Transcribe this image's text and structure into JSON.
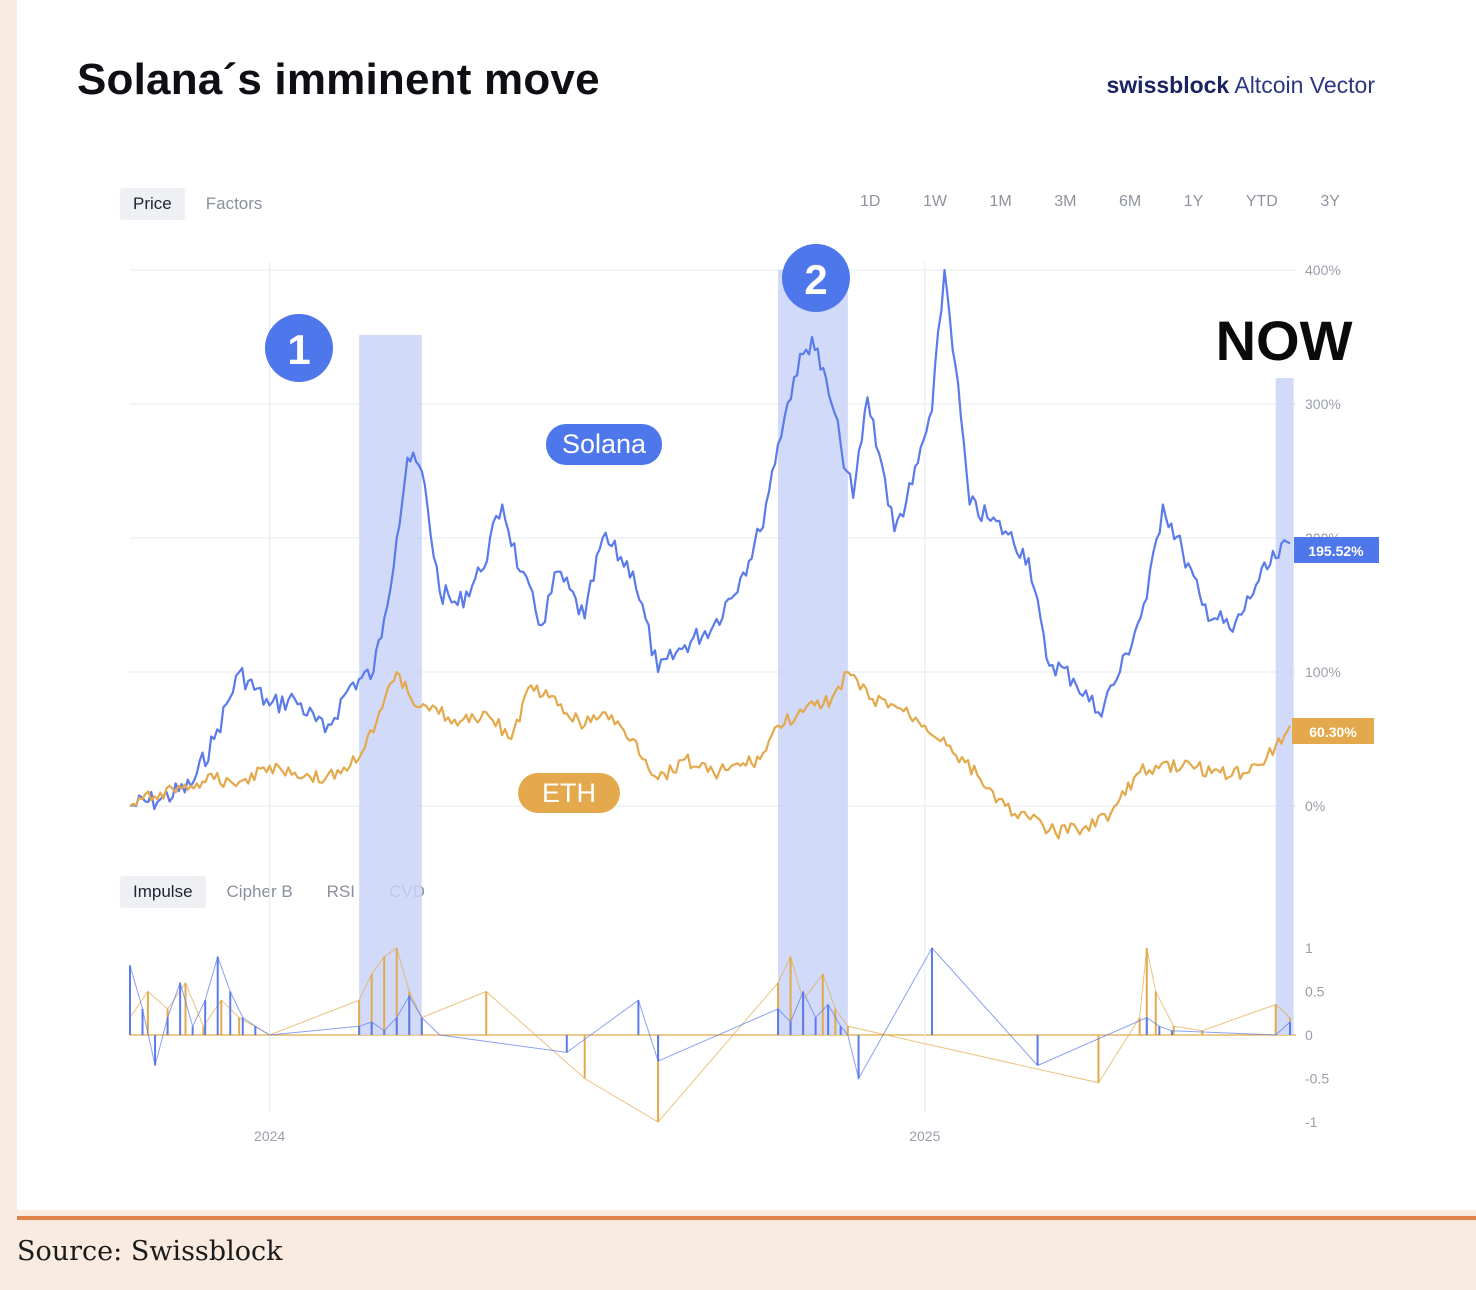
{
  "header": {
    "title": "Solana´s imminent move",
    "brand_bold": "swissblock",
    "brand_light": "Altcoin Vector"
  },
  "chart_tabs": [
    "Price",
    "Factors"
  ],
  "indicator_tabs": [
    "Impulse",
    "Cipher B",
    "RSI",
    "CVD"
  ],
  "time_ranges": [
    "1D",
    "1W",
    "1M",
    "3M",
    "6M",
    "1Y",
    "YTD",
    "3Y"
  ],
  "annotations": {
    "zone_1": "1",
    "zone_2": "2",
    "now": "NOW",
    "solana_label": "Solana",
    "eth_label": "ETH"
  },
  "colors": {
    "solana": "#5b7bea",
    "eth": "#e3a94c",
    "highlight": "#c9d4f7",
    "badge_blue": "#4f77ec",
    "rule": "#e0824a"
  },
  "footer": {
    "source": "Source: Swissblock"
  },
  "chart_data": [
    {
      "type": "line",
      "panel": "price",
      "y_unit": "%",
      "ylim": [
        0,
        400
      ],
      "yticks": [
        "400%",
        "300%",
        "200%",
        "100%",
        "0%"
      ],
      "xticks": [
        "2024",
        "2025"
      ],
      "xlim": [
        "2023-10-15",
        "2025-07-24"
      ],
      "current_values": [
        "195.52%",
        "60.30%"
      ],
      "highlight_periods": [
        [
          "2024-02-20",
          "2024-03-26"
        ],
        [
          "2024-10-11",
          "2024-11-19"
        ],
        [
          "2025-07-16",
          "2025-07-24"
        ]
      ],
      "series": [
        {
          "name": "Solana",
          "x": [
            "2023-10-15",
            "2023-11-01",
            "2023-11-18",
            "2023-12-01",
            "2023-12-15",
            "2024-01-01",
            "2024-01-15",
            "2024-02-01",
            "2024-02-15",
            "2024-02-28",
            "2024-03-05",
            "2024-03-12",
            "2024-03-18",
            "2024-03-26",
            "2024-04-05",
            "2024-04-15",
            "2024-04-28",
            "2024-05-10",
            "2024-05-20",
            "2024-06-01",
            "2024-06-10",
            "2024-06-25",
            "2024-07-05",
            "2024-07-22",
            "2024-08-05",
            "2024-08-20",
            "2024-09-05",
            "2024-09-20",
            "2024-10-01",
            "2024-10-11",
            "2024-10-20",
            "2024-10-30",
            "2024-11-10",
            "2024-11-15",
            "2024-11-22",
            "2024-11-30",
            "2024-12-08",
            "2024-12-15",
            "2024-12-25",
            "2025-01-05",
            "2025-01-12",
            "2025-01-18",
            "2025-01-26",
            "2025-02-05",
            "2025-02-15",
            "2025-02-28",
            "2025-03-10",
            "2025-03-25",
            "2025-04-08",
            "2025-04-20",
            "2025-05-05",
            "2025-05-14",
            "2025-05-25",
            "2025-06-05",
            "2025-06-22",
            "2025-07-05",
            "2025-07-16",
            "2025-07-24"
          ],
          "y": [
            0,
            5,
            15,
            50,
            100,
            75,
            80,
            55,
            90,
            100,
            140,
            200,
            260,
            250,
            160,
            150,
            175,
            225,
            175,
            135,
            175,
            140,
            200,
            175,
            100,
            120,
            135,
            170,
            205,
            270,
            320,
            350,
            300,
            270,
            230,
            305,
            255,
            205,
            240,
            295,
            400,
            330,
            225,
            215,
            205,
            185,
            110,
            95,
            70,
            100,
            155,
            225,
            190,
            150,
            130,
            165,
            185,
            196
          ]
        },
        {
          "name": "ETH",
          "x": [
            "2023-10-15",
            "2023-11-01",
            "2023-11-18",
            "2023-12-01",
            "2023-12-15",
            "2024-01-01",
            "2024-01-15",
            "2024-02-01",
            "2024-02-15",
            "2024-02-28",
            "2024-03-12",
            "2024-03-20",
            "2024-04-01",
            "2024-04-15",
            "2024-05-01",
            "2024-05-15",
            "2024-05-26",
            "2024-06-10",
            "2024-06-25",
            "2024-07-05",
            "2024-07-22",
            "2024-08-05",
            "2024-08-20",
            "2024-09-05",
            "2024-09-20",
            "2024-10-01",
            "2024-10-11",
            "2024-10-25",
            "2024-11-10",
            "2024-11-19",
            "2024-12-01",
            "2024-12-15",
            "2025-01-01",
            "2025-01-15",
            "2025-02-01",
            "2025-02-15",
            "2025-03-01",
            "2025-03-15",
            "2025-04-01",
            "2025-04-15",
            "2025-05-01",
            "2025-05-10",
            "2025-05-25",
            "2025-06-15",
            "2025-07-01",
            "2025-07-16",
            "2025-07-24"
          ],
          "y": [
            0,
            10,
            15,
            20,
            18,
            30,
            25,
            20,
            30,
            55,
            100,
            80,
            75,
            60,
            70,
            50,
            90,
            75,
            60,
            70,
            50,
            20,
            35,
            25,
            30,
            35,
            60,
            70,
            80,
            100,
            80,
            75,
            60,
            45,
            20,
            0,
            -10,
            -20,
            -15,
            -5,
            25,
            30,
            30,
            25,
            25,
            45,
            60
          ]
        }
      ]
    },
    {
      "type": "area",
      "panel": "impulse",
      "ylim": [
        -1,
        1
      ],
      "yticks": [
        "1",
        "0.5",
        "0",
        "-0.5",
        "-1"
      ],
      "xticks": [
        "2024",
        "2025"
      ],
      "xlim": [
        "2023-10-15",
        "2025-07-24"
      ],
      "series": [
        {
          "name": "Solana",
          "x": [
            "2023-10-15",
            "2023-10-22",
            "2023-10-29",
            "2023-11-05",
            "2023-11-12",
            "2023-11-19",
            "2023-11-26",
            "2023-12-03",
            "2023-12-10",
            "2023-12-17",
            "2023-12-24",
            "2024-01-01",
            "2024-02-20",
            "2024-02-27",
            "2024-03-05",
            "2024-03-12",
            "2024-03-19",
            "2024-03-26",
            "2024-04-05",
            "2024-06-15",
            "2024-07-25",
            "2024-08-05",
            "2024-10-11",
            "2024-10-18",
            "2024-10-25",
            "2024-11-01",
            "2024-11-08",
            "2024-11-15",
            "2024-11-19",
            "2024-11-25",
            "2025-01-05",
            "2025-03-05",
            "2025-05-05",
            "2025-05-12",
            "2025-05-19",
            "2025-07-16",
            "2025-07-24"
          ],
          "y": [
            0.8,
            0.3,
            -0.35,
            0.2,
            0.6,
            0.1,
            0.4,
            0.9,
            0.5,
            0.2,
            0.1,
            0,
            0.1,
            0.15,
            0.05,
            0.2,
            0.45,
            0.2,
            0,
            -0.2,
            0.4,
            -0.3,
            0.3,
            0.15,
            0.5,
            0.2,
            0.35,
            0.1,
            0,
            -0.5,
            1,
            -0.35,
            0.2,
            0.1,
            0.05,
            0,
            0.15
          ]
        },
        {
          "name": "ETH",
          "x": [
            "2023-10-15",
            "2023-10-25",
            "2023-11-05",
            "2023-11-15",
            "2023-11-25",
            "2023-12-05",
            "2023-12-15",
            "2024-01-01",
            "2024-02-20",
            "2024-02-27",
            "2024-03-05",
            "2024-03-12",
            "2024-03-19",
            "2024-03-26",
            "2024-05-01",
            "2024-06-25",
            "2024-08-05",
            "2024-10-11",
            "2024-10-18",
            "2024-10-25",
            "2024-11-05",
            "2024-11-12",
            "2024-11-19",
            "2025-04-08",
            "2025-05-01",
            "2025-05-05",
            "2025-05-10",
            "2025-05-20",
            "2025-06-05",
            "2025-07-16",
            "2025-07-24"
          ],
          "y": [
            0.2,
            0.5,
            0.3,
            0.6,
            0.1,
            0.4,
            0.2,
            0,
            0.4,
            0.7,
            0.9,
            1,
            0.5,
            0.2,
            0.5,
            -0.5,
            -1,
            0.6,
            0.9,
            0.4,
            0.7,
            0.3,
            0.1,
            -0.55,
            0.2,
            1,
            0.5,
            0.1,
            0.05,
            0.35,
            0.2
          ]
        }
      ]
    }
  ]
}
